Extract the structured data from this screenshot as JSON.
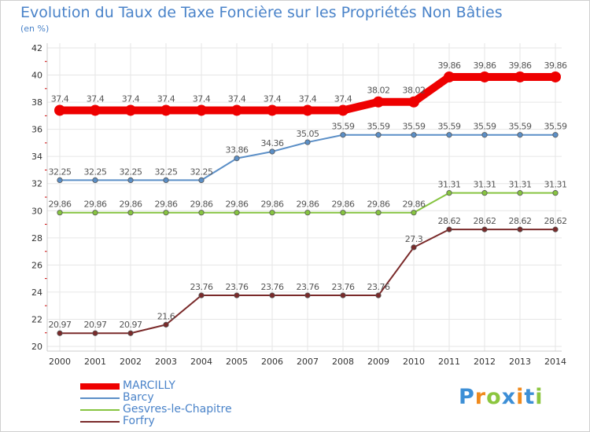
{
  "chart_data": {
    "type": "line",
    "title": "Evolution du Taux de Taxe Foncière sur les Propriétés Non Bâties",
    "unit_label": "(en %)",
    "xlabel": "",
    "ylabel": "",
    "categories": [
      "2000",
      "2001",
      "2002",
      "2003",
      "2004",
      "2005",
      "2006",
      "2007",
      "2008",
      "2009",
      "2010",
      "2011",
      "2012",
      "2013",
      "2014"
    ],
    "y_ticks": [
      "20",
      "22",
      "24",
      "26",
      "28",
      "30",
      "32",
      "34",
      "36",
      "38",
      "40",
      "42"
    ],
    "ylim": [
      20,
      42
    ],
    "grid": true,
    "legend_position": "bottom-left",
    "series": [
      {
        "name": "MARCILLY",
        "color": "#ee0000",
        "values": [
          37.4,
          37.4,
          37.4,
          37.4,
          37.4,
          37.4,
          37.4,
          37.4,
          37.4,
          38.02,
          38.02,
          39.86,
          39.86,
          39.86,
          39.86
        ],
        "labels": [
          "37.4",
          "37.4",
          "37.4",
          "37.4",
          "37.4",
          "37.4",
          "37.4",
          "37.4",
          "37.4",
          "38.02",
          "38.02",
          "39.86",
          "39.86",
          "39.86",
          "39.86"
        ]
      },
      {
        "name": "Barcy",
        "color": "#5b8fc7",
        "values": [
          32.25,
          32.25,
          32.25,
          32.25,
          32.25,
          33.86,
          34.36,
          35.05,
          35.59,
          35.59,
          35.59,
          35.59,
          35.59,
          35.59,
          35.59
        ],
        "labels": [
          "32.25",
          "32.25",
          "32.25",
          "32.25",
          "32.25",
          "33.86",
          "34.36",
          "35.05",
          "35.59",
          "35.59",
          "35.59",
          "35.59",
          "35.59",
          "35.59",
          "35.59"
        ]
      },
      {
        "name": "Gesvres-le-Chapitre",
        "color": "#86c440",
        "values": [
          29.86,
          29.86,
          29.86,
          29.86,
          29.86,
          29.86,
          29.86,
          29.86,
          29.86,
          29.86,
          29.86,
          31.31,
          31.31,
          31.31,
          31.31
        ],
        "labels": [
          "29.86",
          "29.86",
          "29.86",
          "29.86",
          "29.86",
          "29.86",
          "29.86",
          "29.86",
          "29.86",
          "29.86",
          "29.86",
          "31.31",
          "31.31",
          "31.31",
          "31.31"
        ]
      },
      {
        "name": "Forfry",
        "color": "#7a2a2a",
        "values": [
          20.97,
          20.97,
          20.97,
          21.6,
          23.76,
          23.76,
          23.76,
          23.76,
          23.76,
          23.76,
          27.3,
          28.62,
          28.62,
          28.62,
          28.62
        ],
        "labels": [
          "20.97",
          "20.97",
          "20.97",
          "21.6",
          "23.76",
          "23.76",
          "23.76",
          "23.76",
          "23.76",
          "23.76",
          "27.3",
          "28.62",
          "28.62",
          "28.62",
          "28.62"
        ]
      }
    ]
  },
  "legend": {
    "items": [
      {
        "label": "MARCILLY",
        "color": "#ee0000"
      },
      {
        "label": "Barcy",
        "color": "#5b8fc7"
      },
      {
        "label": "Gesvres-le-Chapitre",
        "color": "#86c440"
      },
      {
        "label": "Forfry",
        "color": "#7a2a2a"
      }
    ]
  },
  "logo": {
    "letters": [
      "P",
      "r",
      "o",
      "x",
      "i",
      "t",
      "i"
    ],
    "colors": [
      "#3d8fd6",
      "#f08a1c",
      "#8cc63f",
      "#3d8fd6",
      "#f08a1c",
      "#3d8fd6",
      "#8cc63f"
    ]
  }
}
